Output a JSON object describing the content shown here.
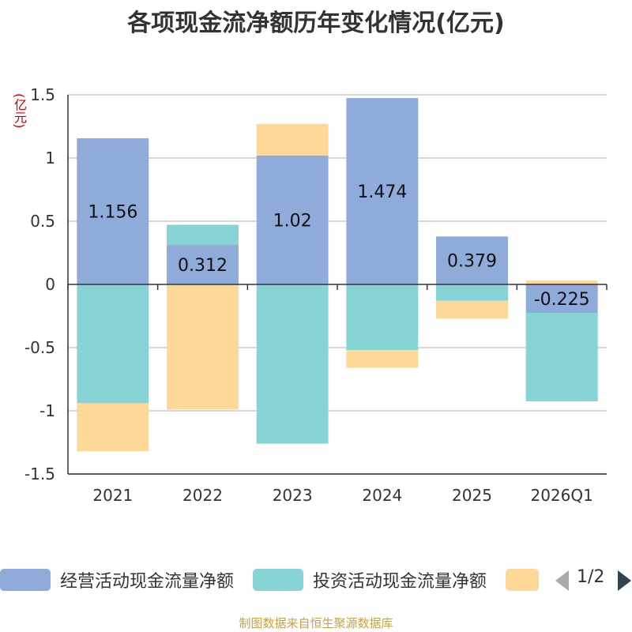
{
  "chart_data": {
    "type": "bar",
    "stacked": true,
    "title": "各项现金流净额历年变化情况(亿元)",
    "unit": "(亿元)",
    "categories": [
      "2021",
      "2022",
      "2023",
      "2024",
      "2025",
      "2026Q1"
    ],
    "yticks": [
      1.5,
      1,
      0.5,
      0,
      -0.5,
      -1,
      -1.5
    ],
    "ytick_labels": [
      "1.5",
      "1",
      "0.5",
      "0",
      "-0.5",
      "-1",
      "-1.5"
    ],
    "ylim": [
      -1.5,
      1.5
    ],
    "series": [
      {
        "name": "经营活动现金流量净额",
        "color": "#8eabda",
        "values": [
          1.156,
          0.312,
          1.02,
          1.474,
          0.379,
          -0.225
        ],
        "labels": [
          "1.156",
          "0.312",
          "1.02",
          "1.474",
          "0.379",
          "-0.225"
        ]
      },
      {
        "name": "投资活动现金流量净额",
        "color": "#86d4d6",
        "values": [
          -0.94,
          0.16,
          -1.26,
          -0.52,
          -0.13,
          -0.7
        ]
      },
      {
        "name": "",
        "color": "#fed896",
        "values": [
          -0.38,
          -0.99,
          0.25,
          -0.14,
          -0.14,
          0.03
        ]
      }
    ],
    "legend_position": "bottom",
    "legend_page": "1/2",
    "grid": true
  },
  "source_note": "制图数据来自恒生聚源数据库"
}
